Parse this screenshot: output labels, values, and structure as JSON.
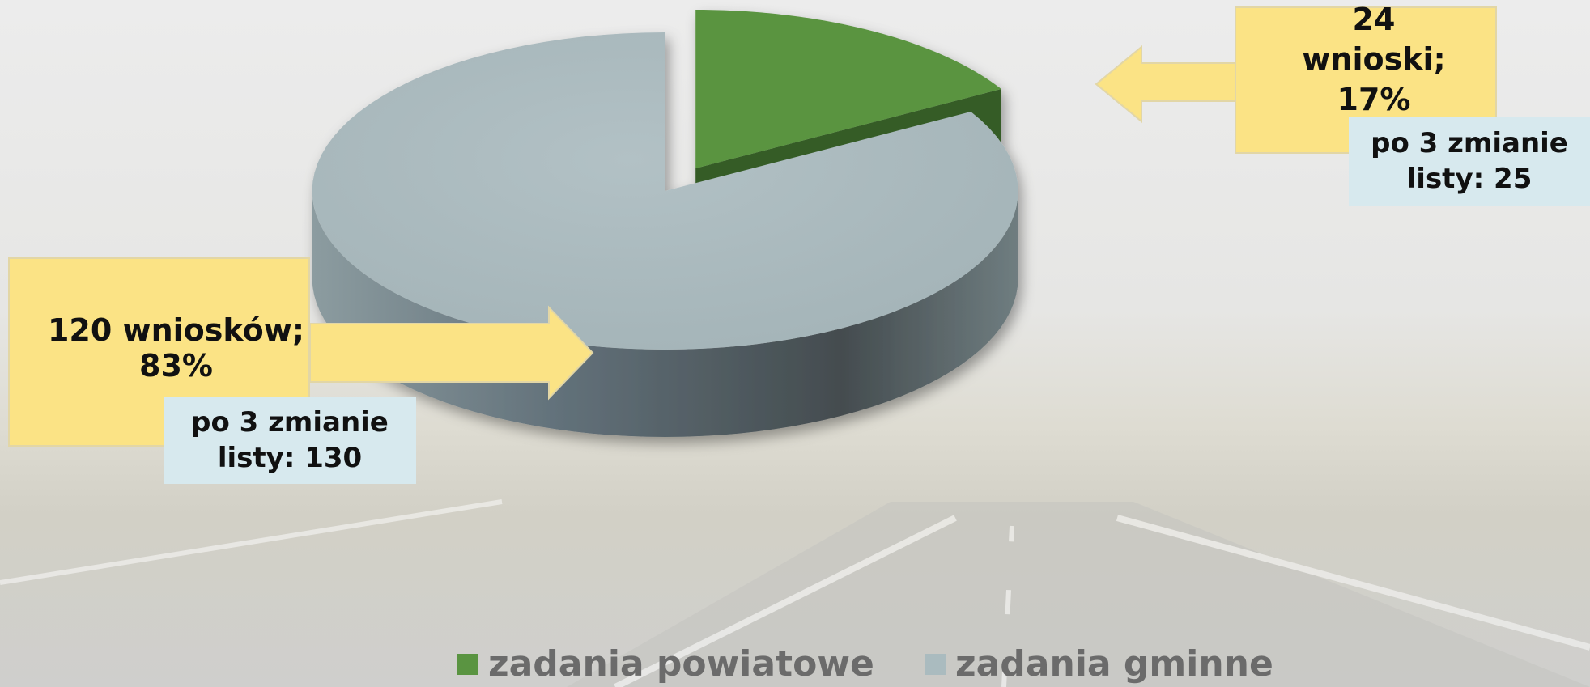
{
  "chart_data": {
    "type": "pie",
    "categories": [
      "zadania powiatowe",
      "zadania gminne"
    ],
    "values": [
      24,
      120
    ],
    "value_labels": [
      "24 wnioski; 17%",
      "120 wniosków; 83%"
    ],
    "annotations": [
      "po 3 zmianie listy: 25",
      "po 3 zmianie listy: 130"
    ],
    "colors": [
      "#5a9441",
      "#aabbbf"
    ],
    "legend": "bottom"
  }
}
